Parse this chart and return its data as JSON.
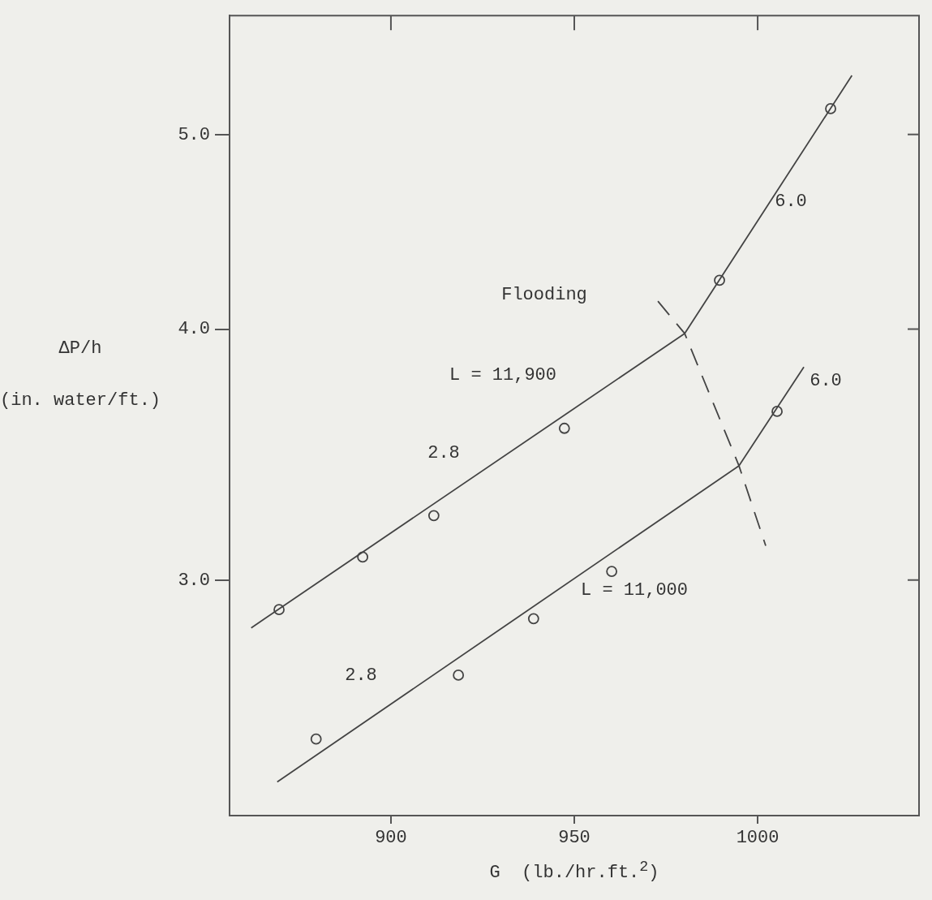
{
  "chart_data": {
    "type": "scatter",
    "xlabel": "G  (lb./hr.ft.$^{2}$)",
    "ylabel": "ΔP/h\n(in. water/ft.)",
    "log": "y",
    "grid": false,
    "legend": false,
    "marker": "circle",
    "xlim": [
      856,
      1044
    ],
    "xticks": [
      900,
      950,
      1000
    ],
    "ylim": [
      2.29,
      5.73
    ],
    "yticks": [
      {
        "value": 3,
        "label": "3.0"
      },
      {
        "value": 4,
        "label": "4.0"
      },
      {
        "value": 5,
        "label": "5.0"
      }
    ],
    "series": [
      {
        "type": "scatter",
        "color": "#444444",
        "x": [
          869.5,
          892.3,
          911.7,
          947.3,
          989.6,
          1019.9
        ],
        "values": [
          2.9,
          3.08,
          3.23,
          3.57,
          4.23,
          5.15
        ]
      },
      {
        "type": "scatter",
        "color": "#444444",
        "x": [
          879.6,
          918.4,
          938.9,
          960.2,
          1005.3
        ],
        "values": [
          2.5,
          2.69,
          2.87,
          3.03,
          3.64
        ]
      },
      {
        "type": "line",
        "color": "#444444",
        "marker": "none",
        "x": [
          861.9,
          980.1,
          1025.7
        ],
        "values": [
          2.84,
          3.98,
          5.35
        ]
      },
      {
        "type": "line",
        "color": "#444444",
        "marker": "none",
        "x": [
          869,
          994.9,
          1012.6
        ],
        "values": [
          2.38,
          3.42,
          3.83
        ]
      },
      {
        "type": "line",
        "color": "#444444",
        "marker": "none",
        "line_style": "dashed",
        "x": [
          972.8,
          980.1,
          994.9,
          1002.2
        ],
        "values": [
          4.13,
          3.98,
          3.42,
          3.12
        ]
      }
    ],
    "annotations": [
      "Flooding",
      "L = 11,900",
      "2.8",
      "6.0",
      "6.0",
      "L = 11,000",
      "2.8"
    ]
  }
}
